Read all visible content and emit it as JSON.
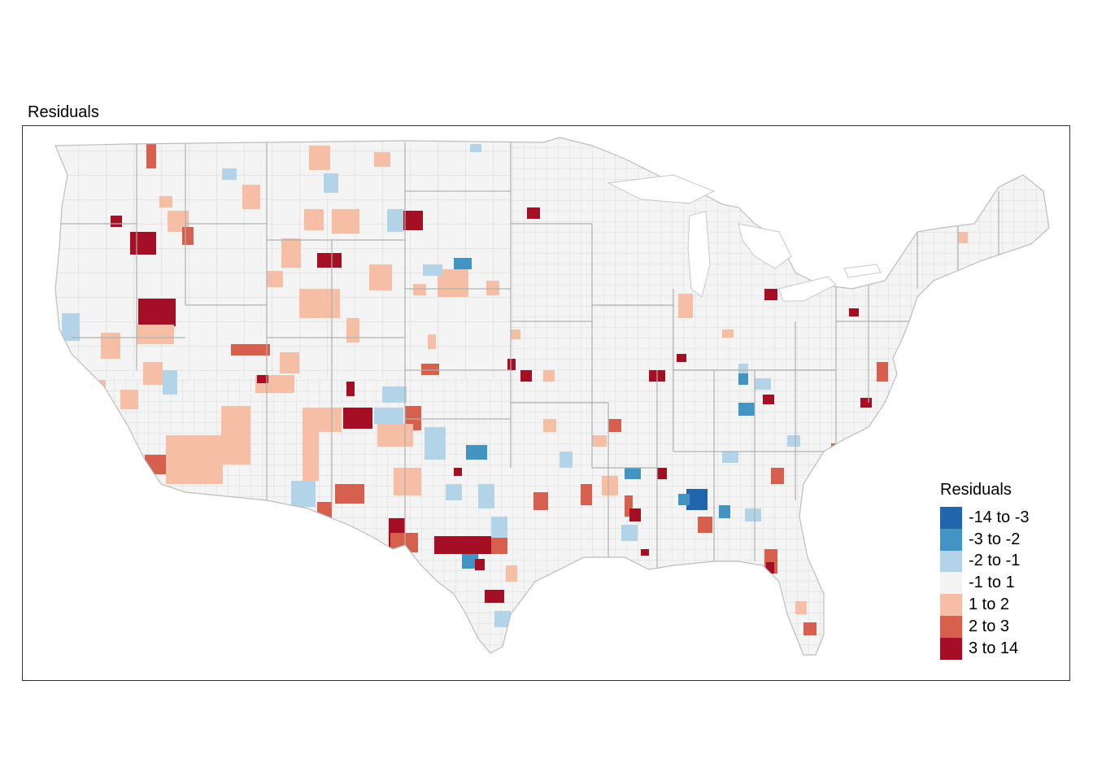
{
  "title": "Residuals",
  "legend": {
    "title": "Residuals",
    "items": [
      {
        "label": "-14 to -3",
        "color": "#2166ac"
      },
      {
        "label": "-3 to -2",
        "color": "#4393c3"
      },
      {
        "label": "-2 to -1",
        "color": "#b3d3e8"
      },
      {
        "label": "-1 to 1",
        "color": "#f4f4f4"
      },
      {
        "label": "1 to 2",
        "color": "#f6bfa5"
      },
      {
        "label": "2 to 3",
        "color": "#d6604d"
      },
      {
        "label": "3 to 14",
        "color": "#a50f25"
      }
    ]
  },
  "colors": {
    "county_border": "#c8c8c8",
    "state_border": "#aaaaaa",
    "land": "#f4f4f4",
    "panel_border": "#333333"
  }
}
